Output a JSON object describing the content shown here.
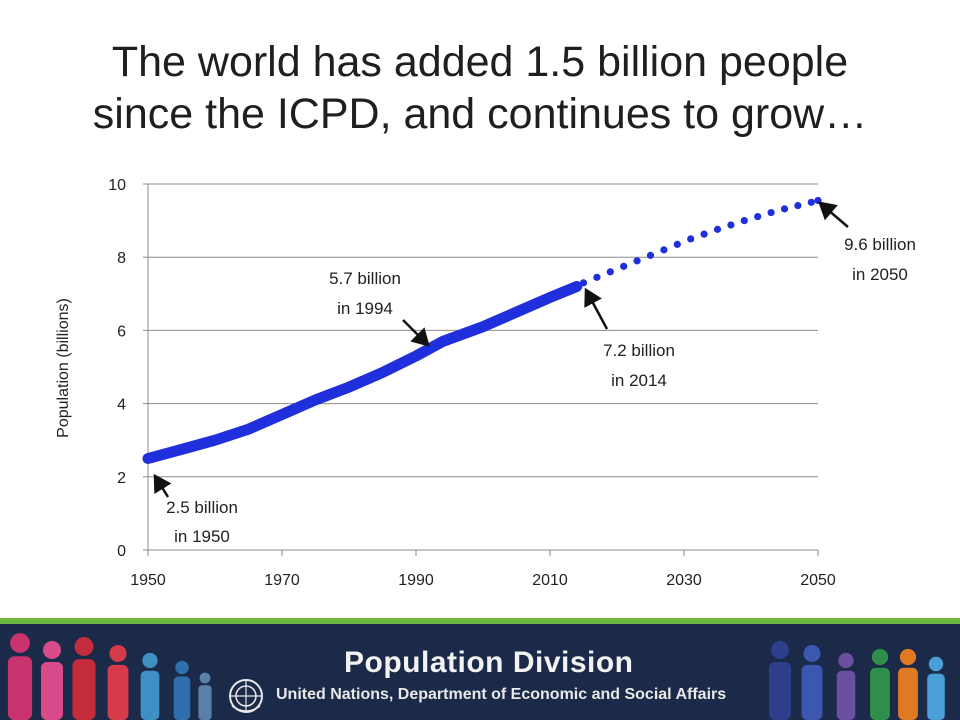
{
  "title_line1": "The world has added 1.5 billion people",
  "title_line2": "since the ICPD, and continues to grow…",
  "chart_data": {
    "type": "line",
    "title": "The world has added 1.5 billion people since the ICPD, and continues to grow…",
    "xlabel": "",
    "ylabel": "Population (billions)",
    "xlim": [
      1950,
      2050
    ],
    "ylim": [
      0,
      10
    ],
    "x_ticks": [
      1950,
      1970,
      1990,
      2010,
      2030,
      2050
    ],
    "y_ticks": [
      0,
      2,
      4,
      6,
      8,
      10
    ],
    "grid": "horizontal",
    "series": [
      {
        "style": "solid",
        "color": "#1f2fdc",
        "points": [
          [
            1950,
            2.5
          ],
          [
            1955,
            2.75
          ],
          [
            1960,
            3.0
          ],
          [
            1965,
            3.3
          ],
          [
            1970,
            3.7
          ],
          [
            1975,
            4.1
          ],
          [
            1980,
            4.45
          ],
          [
            1985,
            4.85
          ],
          [
            1990,
            5.3
          ],
          [
            1994,
            5.7
          ],
          [
            2000,
            6.1
          ],
          [
            2005,
            6.5
          ],
          [
            2010,
            6.9
          ],
          [
            2014,
            7.2
          ]
        ]
      },
      {
        "style": "dotted",
        "color": "#1f2fdc",
        "points": [
          [
            2015,
            7.3
          ],
          [
            2017,
            7.45
          ],
          [
            2019,
            7.6
          ],
          [
            2021,
            7.75
          ],
          [
            2023,
            7.9
          ],
          [
            2025,
            8.05
          ],
          [
            2027,
            8.2
          ],
          [
            2029,
            8.35
          ],
          [
            2031,
            8.5
          ],
          [
            2033,
            8.63
          ],
          [
            2035,
            8.76
          ],
          [
            2037,
            8.88
          ],
          [
            2039,
            9.0
          ],
          [
            2041,
            9.11
          ],
          [
            2043,
            9.22
          ],
          [
            2045,
            9.32
          ],
          [
            2047,
            9.41
          ],
          [
            2049,
            9.5
          ],
          [
            2050,
            9.55
          ]
        ]
      }
    ],
    "annotations": [
      {
        "line1": "2.5 billion",
        "line2": "in 1950",
        "x": 1950,
        "y": 2.5
      },
      {
        "line1": "5.7 billion",
        "line2": "in 1994",
        "x": 1994,
        "y": 5.7
      },
      {
        "line1": "7.2 billion",
        "line2": "in 2014",
        "x": 2014,
        "y": 7.2
      },
      {
        "line1": "9.6 billion",
        "line2": "in 2050",
        "x": 2050,
        "y": 9.6
      }
    ]
  },
  "footer": {
    "title": "Population Division",
    "subtitle": "United Nations, Department of Economic and Social Affairs",
    "stripe_color": "#6fb73f",
    "background_color": "#1a2a48"
  }
}
